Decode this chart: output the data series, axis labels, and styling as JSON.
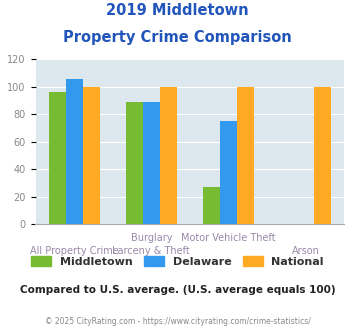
{
  "title_line1": "2019 Middletown",
  "title_line2": "Property Crime Comparison",
  "cat_labels_top": [
    "",
    "Burglary",
    "Motor Vehicle Theft",
    ""
  ],
  "cat_labels_bot": [
    "All Property Crime",
    "Larceny & Theft",
    "",
    "Arson"
  ],
  "middletown": [
    96,
    89,
    27,
    0
  ],
  "delaware": [
    106,
    89,
    75,
    0
  ],
  "national": [
    100,
    100,
    100,
    100
  ],
  "color_middletown": "#77bb33",
  "color_delaware": "#3399ee",
  "color_national": "#ffaa22",
  "ylim": [
    0,
    120
  ],
  "yticks": [
    0,
    20,
    40,
    60,
    80,
    100,
    120
  ],
  "background_color": "#dce8ed",
  "subtitle_text": "Compared to U.S. average. (U.S. average equals 100)",
  "footer_text": "© 2025 CityRating.com - https://www.cityrating.com/crime-statistics/",
  "legend_labels": [
    "Middletown",
    "Delaware",
    "National"
  ],
  "title_color": "#2255bb",
  "label_color_top": "#9988aa",
  "label_color_bot": "#9988aa",
  "subtitle_color": "#222222",
  "footer_color": "#888888",
  "tick_color": "#888888"
}
